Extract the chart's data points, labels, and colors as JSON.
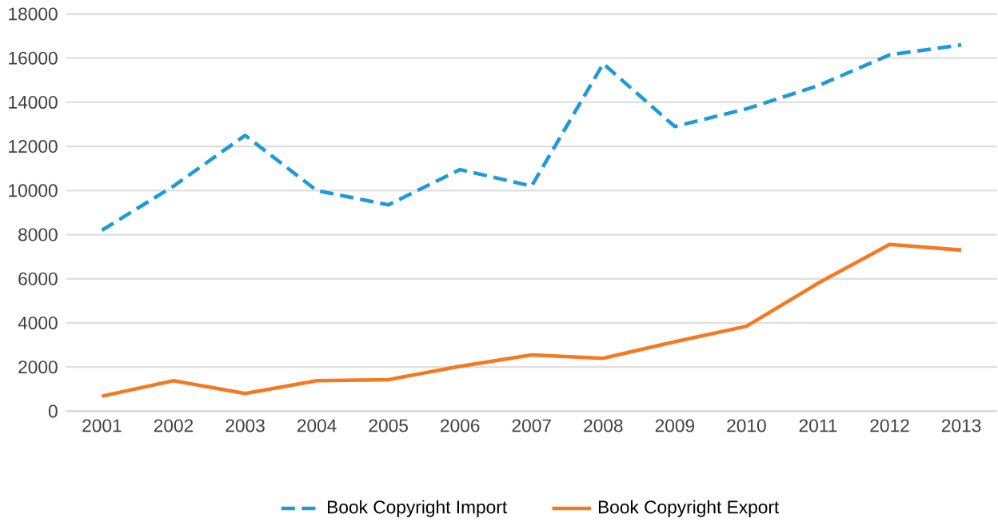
{
  "chart_data": {
    "type": "line",
    "categories": [
      "2001",
      "2002",
      "2003",
      "2004",
      "2005",
      "2006",
      "2007",
      "2008",
      "2009",
      "2010",
      "2011",
      "2012",
      "2013"
    ],
    "series": [
      {
        "name": "Book Copyright Import",
        "color": "#1f9ad6",
        "line_style": "dashed",
        "values": [
          8200,
          10200,
          12500,
          10000,
          9350,
          10950,
          10200,
          15750,
          12900,
          13700,
          14750,
          16150,
          16600
        ]
      },
      {
        "name": "Book Copyright Export",
        "color": "#f47920",
        "line_style": "solid",
        "values": [
          680,
          1380,
          800,
          1380,
          1430,
          2030,
          2550,
          2400,
          3150,
          3850,
          5800,
          7560,
          7300
        ]
      }
    ],
    "ylim": [
      0,
      18000
    ],
    "yticks": [
      0,
      2000,
      4000,
      6000,
      8000,
      10000,
      12000,
      14000,
      16000,
      18000
    ],
    "grid": "y",
    "legend": "bottom",
    "marker": "none"
  }
}
